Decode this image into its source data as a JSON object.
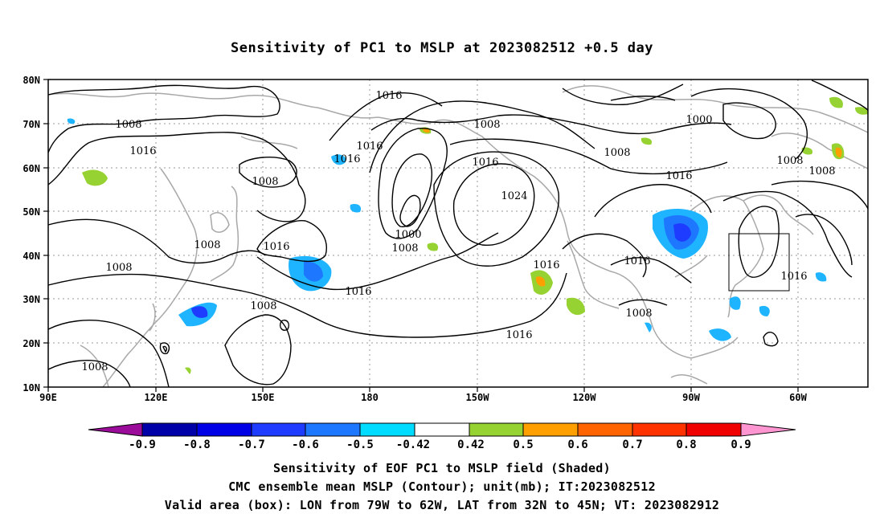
{
  "title": "Sensitivity of PC1 to MSLP at 2023082512 +0.5 day",
  "axes": {
    "lat_labels": [
      "80N",
      "70N",
      "60N",
      "50N",
      "40N",
      "30N",
      "20N",
      "10N"
    ],
    "lon_labels": [
      "90E",
      "120E",
      "150E",
      "180",
      "150W",
      "120W",
      "90W",
      "60W"
    ]
  },
  "contour_labels": [
    "1016",
    "1008",
    "1008",
    "1016",
    "1016",
    "1016",
    "1008",
    "1000",
    "1000",
    "1008",
    "1016",
    "1024",
    "1008",
    "1008",
    "1016",
    "1016",
    "1016",
    "1008",
    "1008",
    "1016",
    "1016",
    "1016",
    "1008",
    "1008"
  ],
  "valid_box": {
    "lon_range": "79W to 62W",
    "lat_range": "32N to 45N"
  },
  "colorbar": {
    "labels": [
      "-0.9",
      "-0.8",
      "-0.7",
      "-0.6",
      "-0.5",
      "-0.42",
      "0.42",
      "0.5",
      "0.6",
      "0.7",
      "0.8",
      "0.9"
    ],
    "colors": [
      "#9b0c9b",
      "#0000a8",
      "#0000e6",
      "#1e3cff",
      "#1e78ff",
      "#1eb4ff",
      "#00dcff",
      "#ffffff",
      "#96d232",
      "#ffa000",
      "#ff6400",
      "#ff3200",
      "#f00000",
      "#ff96d2"
    ]
  },
  "captions": {
    "line1": "Sensitivity of EOF PC1 to MSLP field (Shaded)",
    "line2": "CMC ensemble mean MSLP (Contour); unit(mb); IT:2023082512",
    "line3": "Valid area (box): LON from 79W to 62W, LAT from 32N to 45N; VT: 2023082912"
  }
}
